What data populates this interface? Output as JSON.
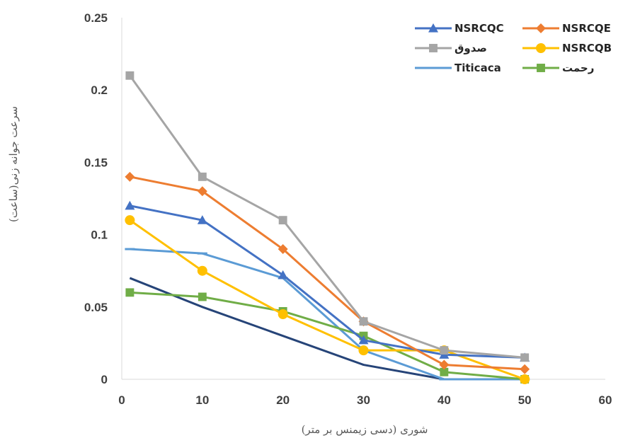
{
  "chart_data": {
    "type": "line",
    "title": "",
    "xlabel": "شوری (دسی زیمنس بر متر)",
    "ylabel": "سرعت جوانه زنی(ساعت)",
    "xlim": [
      0,
      60
    ],
    "ylim": [
      0,
      0.25
    ],
    "x_ticks": [
      "0",
      "10",
      "20",
      "30",
      "40",
      "50",
      "60"
    ],
    "y_ticks": [
      "0",
      "0.05",
      "0.1",
      "0.15",
      "0.2",
      "0.25"
    ],
    "grid": false,
    "legend_position": "top-right",
    "series": [
      {
        "name": "NSRCQC",
        "color": "#4472C4",
        "marker": "triangle",
        "x": [
          1,
          10,
          20,
          30,
          40,
          50
        ],
        "values": [
          0.12,
          0.11,
          0.072,
          0.027,
          0.017,
          0.015
        ]
      },
      {
        "name": "NSRCQE",
        "color": "#ED7D31",
        "marker": "diamond",
        "x": [
          1,
          10,
          20,
          30,
          40,
          50
        ],
        "values": [
          0.14,
          0.13,
          0.09,
          0.04,
          0.01,
          0.007
        ]
      },
      {
        "name": "صدوق",
        "color": "#A5A5A5",
        "marker": "square",
        "x": [
          1,
          10,
          20,
          30,
          40,
          50
        ],
        "values": [
          0.21,
          0.14,
          0.11,
          0.04,
          0.02,
          0.015
        ]
      },
      {
        "name": "NSRCQB",
        "color": "#FFC000",
        "marker": "circle",
        "x": [
          1,
          10,
          20,
          30,
          40,
          50
        ],
        "values": [
          0.11,
          0.075,
          0.045,
          0.02,
          0.02,
          0
        ]
      },
      {
        "name": "Titicaca",
        "color": "#5B9BD5",
        "marker": "dash",
        "x": [
          1,
          10,
          20,
          30,
          40,
          50
        ],
        "values": [
          0.09,
          0.087,
          0.07,
          0.02,
          0,
          0
        ]
      },
      {
        "name": "رحمت",
        "color": "#70AD47",
        "marker": "square",
        "x": [
          1,
          10,
          20,
          30,
          40,
          50
        ],
        "values": [
          0.06,
          0.057,
          0.047,
          0.03,
          0.005,
          0
        ]
      },
      {
        "name": "",
        "color": "#264478",
        "marker": "none",
        "x": [
          1,
          10,
          20,
          30,
          40,
          50
        ],
        "values": [
          0.07,
          0.05,
          0.03,
          0.01,
          0,
          0
        ]
      }
    ]
  }
}
